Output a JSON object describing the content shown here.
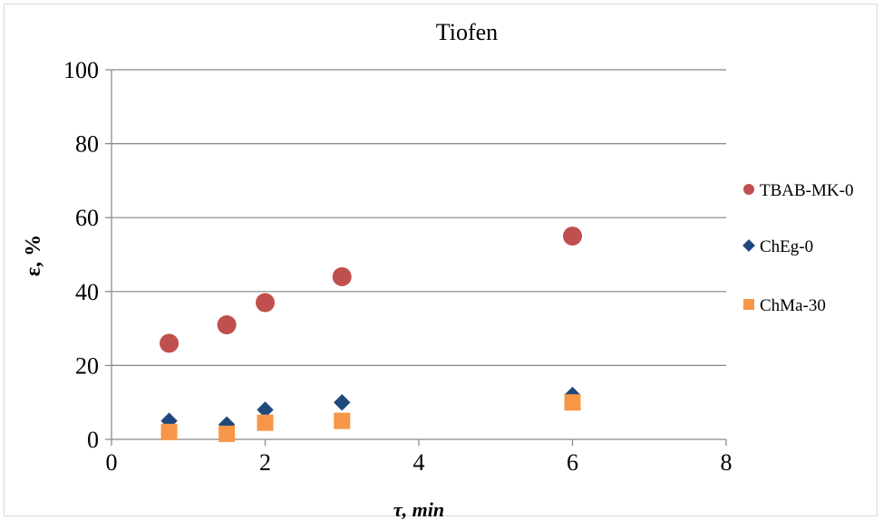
{
  "chart_data": {
    "type": "scatter",
    "title": "Tiofen",
    "xlabel": "τ, min",
    "ylabel": "ε, %",
    "xlim": [
      0,
      8
    ],
    "ylim": [
      0,
      100
    ],
    "x_ticks": [
      "0",
      "2",
      "4",
      "6",
      "8"
    ],
    "y_ticks": [
      "0",
      "20",
      "40",
      "60",
      "80",
      "100"
    ],
    "grid": "horizontal",
    "legend_position": "right",
    "series": [
      {
        "name": "TBAB-MK-0",
        "marker": "circle",
        "color": "#C0504D",
        "points": [
          [
            0.75,
            26
          ],
          [
            1.5,
            31
          ],
          [
            2,
            37
          ],
          [
            3,
            44
          ],
          [
            6,
            55
          ]
        ]
      },
      {
        "name": "ChEg-0",
        "marker": "diamond",
        "color": "#1F497D",
        "points": [
          [
            0.75,
            5
          ],
          [
            1.5,
            4
          ],
          [
            2,
            8
          ],
          [
            3,
            10
          ],
          [
            6,
            12
          ]
        ]
      },
      {
        "name": "ChMa-30",
        "marker": "square",
        "color": "#F79646",
        "points": [
          [
            0.75,
            2
          ],
          [
            1.5,
            1.5
          ],
          [
            2,
            4.5
          ],
          [
            3,
            5
          ],
          [
            6,
            10
          ]
        ]
      }
    ]
  }
}
